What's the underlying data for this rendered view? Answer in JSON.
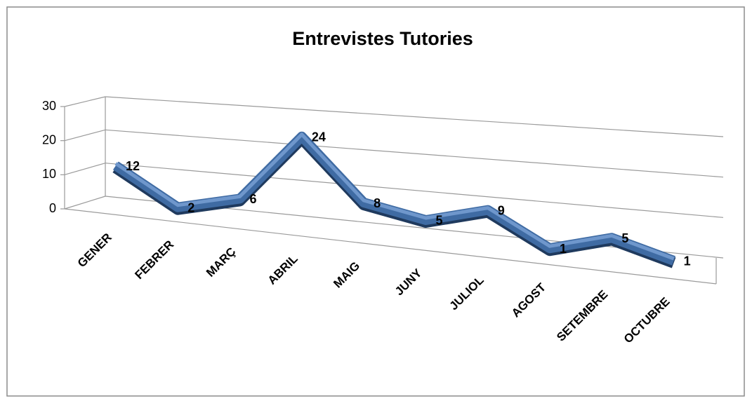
{
  "chart_data": {
    "type": "line",
    "title": "Entrevistes Tutories",
    "categories": [
      "GENER",
      "FEBRER",
      "MARÇ",
      "ABRIL",
      "MAIG",
      "JUNY",
      "JULIOL",
      "AGOST",
      "SETEMBRE",
      "OCTUBRE"
    ],
    "values": [
      12,
      2,
      6,
      24,
      8,
      5,
      9,
      1,
      5,
      1
    ],
    "color": "#3f6ba3",
    "ylim": [
      0,
      30
    ],
    "yticks": [
      0,
      10,
      20,
      30
    ],
    "grid": true
  }
}
